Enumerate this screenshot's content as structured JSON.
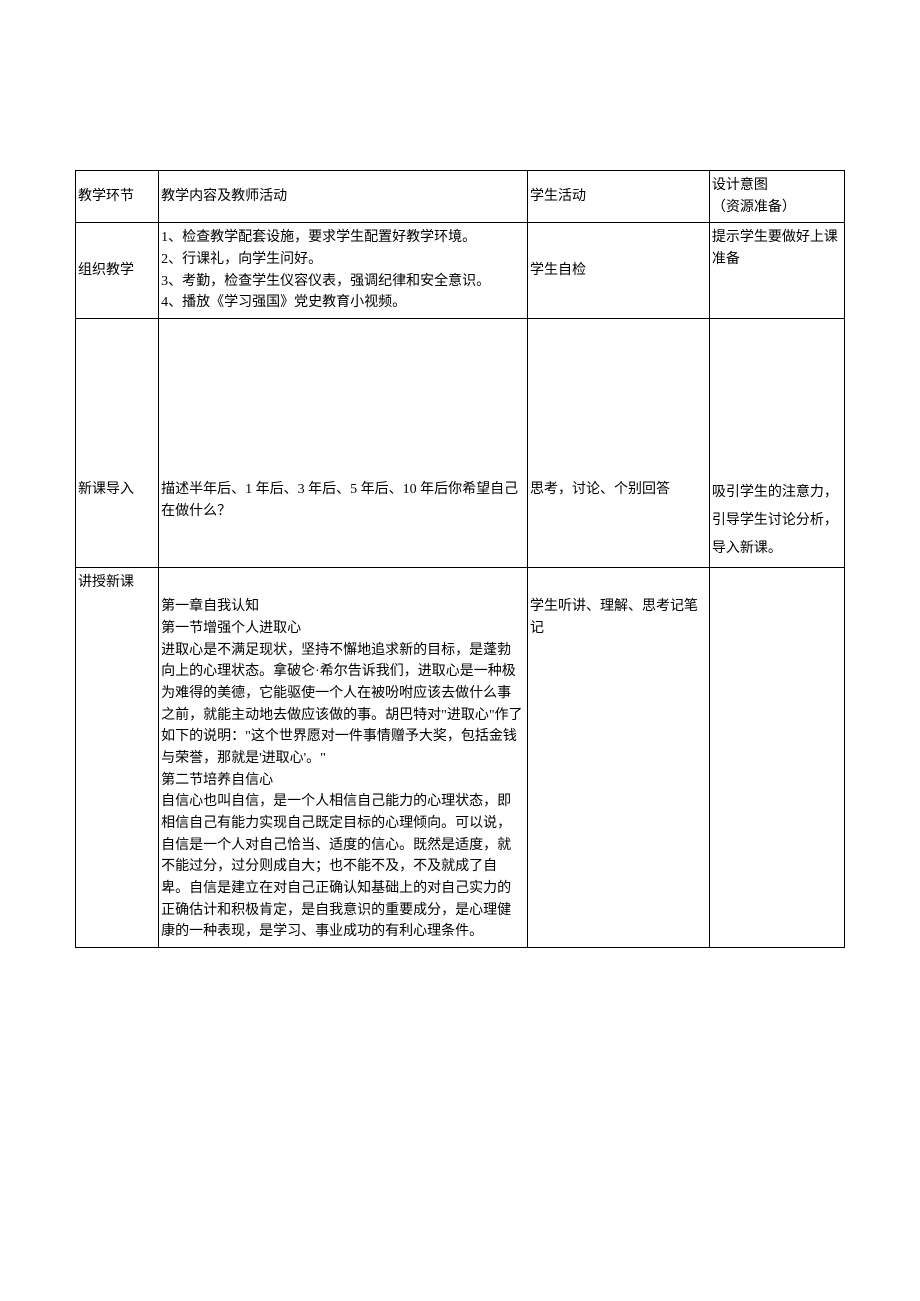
{
  "table": {
    "header": {
      "col1": "教学环节",
      "col2": "教学内容及教师活动",
      "col3": "学生活动",
      "col4": "设计意图\n（资源准备）"
    },
    "rows": [
      {
        "col1": "组织教学",
        "col2": "1、检查教学配套设施，要求学生配置好教学环境。\n2、行课礼，向学生问好。\n3、考勤，检查学生仪容仪表，强调纪律和安全意识。\n4、播放《学习强国》党史教育小视频。",
        "col3": "学生自检",
        "col4": "提示学生要做好上课准备"
      },
      {
        "col1": "新课导入",
        "col2": "描述半年后、1 年后、3 年后、5 年后、10 年后你希望自己在做什么？",
        "col3": "思考，讨论、个别回答",
        "col4": "吸引学生的注意力，引导学生讨论分析，导入新课。"
      },
      {
        "col1": "讲授新课",
        "col2": "第一章自我认知\n第一节增强个人进取心\n进取心是不满足现状，坚持不懈地追求新的目标，是蓬勃向上的心理状态。拿破仑·希尔告诉我们，进取心是一种极为难得的美德，它能驱使一个人在被吩咐应该去做什么事之前，就能主动地去做应该做的事。胡巴特对\"进取心\"作了如下的说明：\"这个世界愿对一件事情赠予大奖，包括金钱与荣誉，那就是'进取心'。\"\n第二节培养自信心\n自信心也叫自信，是一个人相信自己能力的心理状态，即相信自己有能力实现自己既定目标的心理倾向。可以说，自信是一个人对自己恰当、适度的信心。既然是适度，就不能过分，过分则成自大；也不能不及，不及就成了自卑。自信是建立在对自己正确认知基础上的对自己实力的正确估计和积极肯定，是自我意识的重要成分，是心理健康的一种表现，是学习、事业成功的有利心理条件。",
        "col3": "学生听讲、理解、思考记笔记",
        "col4": ""
      }
    ]
  }
}
